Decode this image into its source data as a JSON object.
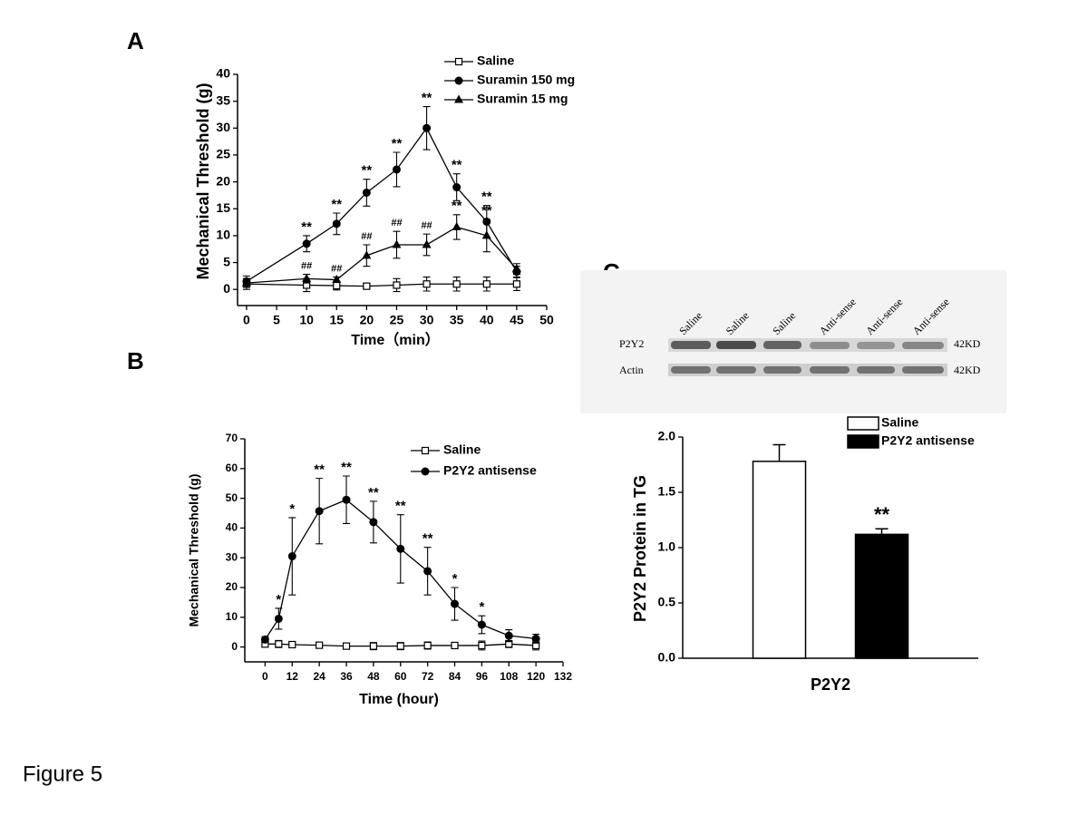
{
  "figure_label": "Figure 5",
  "panel_labels": [
    "A",
    "B",
    "C"
  ],
  "blot": {
    "lanes": [
      "Saline",
      "Saline",
      "Saline",
      "Anti-sense",
      "Anti-sense",
      "Anti-sense"
    ],
    "rows": [
      "P2Y2",
      "Actin"
    ],
    "sizes": [
      "42KD",
      "42KD"
    ]
  },
  "chart_data": [
    {
      "type": "line",
      "xlabel": "Time（min）",
      "ylabel": "Mechanical Threshold (g)",
      "x": [
        0,
        10,
        15,
        20,
        25,
        30,
        35,
        40,
        45
      ],
      "xlim": [
        -1.5,
        50
      ],
      "ylim": [
        -3,
        40
      ],
      "xticks": [
        0,
        5,
        10,
        15,
        20,
        25,
        30,
        35,
        40,
        45,
        50
      ],
      "yticks": [
        0,
        5,
        10,
        15,
        20,
        25,
        30,
        35,
        40
      ],
      "series": [
        {
          "name": "Saline",
          "color": "#000000",
          "marker": "square-open",
          "values": [
            1.0,
            0.8,
            0.7,
            0.6,
            0.8,
            1.0,
            1.0,
            1.0,
            1.0
          ],
          "errors": [
            1.0,
            1.2,
            0.8,
            0.5,
            1.2,
            1.3,
            1.3,
            1.3,
            1.2
          ]
        },
        {
          "name": "Suramin 150 mg",
          "color": "#000000",
          "marker": "circle",
          "values": [
            1.5,
            8.5,
            12.2,
            18.0,
            22.3,
            30.0,
            19.0,
            12.6,
            3.3
          ],
          "errors": [
            1.0,
            1.5,
            2.0,
            2.5,
            3.2,
            4.0,
            2.5,
            3.0,
            1.0
          ],
          "significance": [
            null,
            "**",
            "**",
            "**",
            "**",
            "**",
            "**",
            "**",
            null
          ]
        },
        {
          "name": "Suramin 15   mg",
          "color": "#000000",
          "marker": "triangle",
          "values": [
            1.2,
            2.0,
            1.8,
            6.3,
            8.3,
            8.3,
            11.6,
            10.0,
            3.8
          ],
          "errors": [
            0.8,
            0.8,
            0.5,
            2.0,
            2.5,
            2.0,
            2.3,
            3.0,
            1.0
          ],
          "significance": [
            null,
            "##",
            "##",
            "##",
            "##",
            "##",
            "**",
            "**",
            null
          ]
        }
      ]
    },
    {
      "type": "line",
      "xlabel": "Time (hour)",
      "ylabel": "Mechanical Threshold (g)",
      "x": [
        0,
        6,
        12,
        24,
        36,
        48,
        60,
        72,
        84,
        96,
        108,
        120
      ],
      "xlim": [
        -9,
        132
      ],
      "ylim": [
        -5,
        70
      ],
      "xticks": [
        0,
        12,
        24,
        36,
        48,
        60,
        72,
        84,
        96,
        108,
        120,
        132
      ],
      "yticks": [
        0,
        10,
        20,
        30,
        40,
        50,
        60,
        70
      ],
      "series": [
        {
          "name": "Saline",
          "color": "#000000",
          "marker": "square-open",
          "values": [
            1.0,
            1.0,
            0.8,
            0.6,
            0.3,
            0.3,
            0.3,
            0.5,
            0.5,
            0.5,
            1.0,
            0.5
          ],
          "errors": [
            1.0,
            1.2,
            0.8,
            0.6,
            0.8,
            1.2,
            1.2,
            1.2,
            1.0,
            1.5,
            1.2,
            1.5
          ]
        },
        {
          "name": "P2Y2 antisense",
          "color": "#000000",
          "marker": "circle",
          "values": [
            2.5,
            9.5,
            30.5,
            45.7,
            49.5,
            42.0,
            33.0,
            25.5,
            14.5,
            7.5,
            3.8,
            2.8
          ],
          "errors": [
            1.0,
            3.5,
            13.0,
            11.0,
            8.0,
            7.0,
            11.5,
            8.0,
            5.5,
            3.0,
            2.0,
            1.5
          ],
          "significance": [
            null,
            "*",
            "*",
            "**",
            "**",
            "**",
            "**",
            "**",
            "*",
            "*",
            null,
            null
          ]
        }
      ]
    },
    {
      "type": "bar",
      "ylabel": "P2Y2 Protein in TG",
      "categories": [
        "P2Y2"
      ],
      "ylim": [
        0,
        2.0
      ],
      "yticks": [
        {
          "value": 0,
          "label": "0.0"
        },
        0.5,
        {
          "value": 1,
          "label": "1.0"
        },
        1.5,
        {
          "value": 2,
          "label": "2.0"
        }
      ],
      "series": [
        {
          "name": "Saline",
          "color": "#ffffff",
          "values": [
            1.78
          ],
          "errors": [
            0.15
          ]
        },
        {
          "name": "P2Y2 antisense",
          "color": "#000000",
          "values": [
            1.12
          ],
          "errors": [
            0.05
          ],
          "significance": [
            "**"
          ]
        }
      ]
    }
  ]
}
